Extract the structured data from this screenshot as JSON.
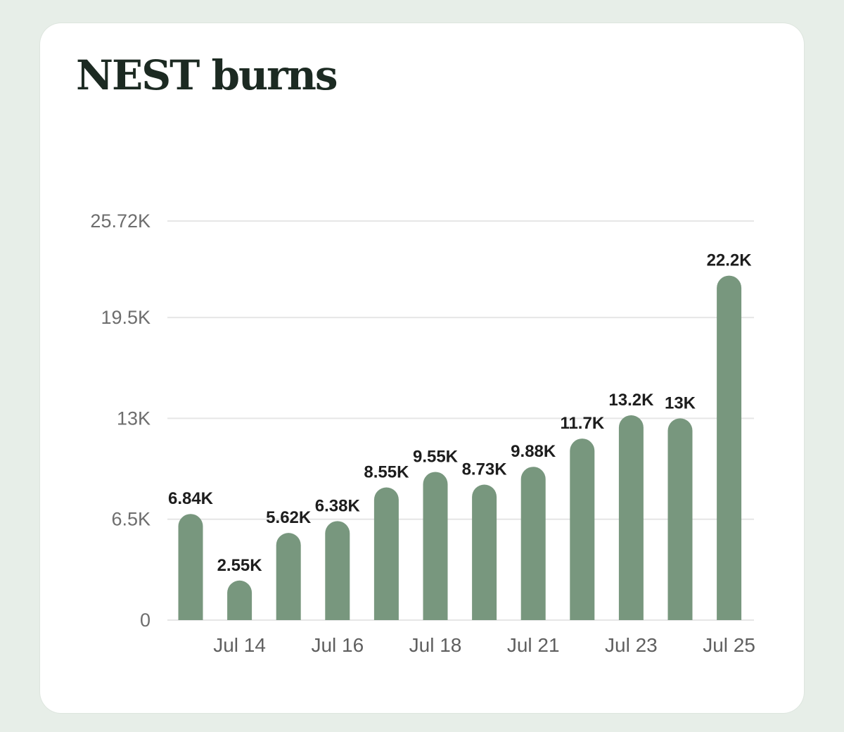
{
  "card": {
    "title": "NEST burns"
  },
  "chart_data": {
    "type": "bar",
    "title": "NEST burns",
    "xlabel": "",
    "ylabel": "",
    "ylim": [
      0,
      25720
    ],
    "grid": true,
    "legend": "none",
    "yticks": [
      {
        "value": 0,
        "label": "0"
      },
      {
        "value": 6500,
        "label": "6.5K"
      },
      {
        "value": 13000,
        "label": "13K"
      },
      {
        "value": 19500,
        "label": "19.5K"
      },
      {
        "value": 25720,
        "label": "25.72K"
      }
    ],
    "xtick_labels": [
      {
        "index": 1,
        "label": "Jul 14"
      },
      {
        "index": 3,
        "label": "Jul 16"
      },
      {
        "index": 5,
        "label": "Jul 18"
      },
      {
        "index": 7,
        "label": "Jul 21"
      },
      {
        "index": 9,
        "label": "Jul 23"
      },
      {
        "index": 11,
        "label": "Jul 25"
      }
    ],
    "values": [
      6840,
      2550,
      5620,
      6380,
      8550,
      9550,
      8730,
      9880,
      11700,
      13200,
      13000,
      22200
    ],
    "data_labels": [
      "6.84K",
      "2.55K",
      "5.62K",
      "6.38K",
      "8.55K",
      "9.55K",
      "8.73K",
      "9.88K",
      "11.7K",
      "13.2K",
      "13K",
      "22.2K"
    ],
    "colors": {
      "bar": "#78977e",
      "grid": "#e6e6e6"
    }
  }
}
